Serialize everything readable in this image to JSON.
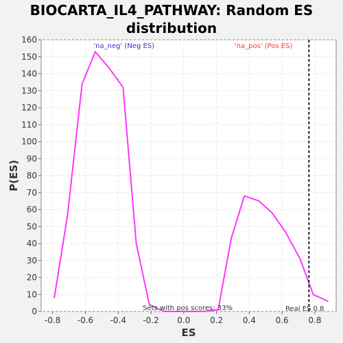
{
  "chart_data": {
    "type": "line",
    "title_line1": "BIOCARTA_IL4_PATHWAY: Random ES",
    "title_line2": "distribution",
    "xlabel": "ES",
    "ylabel": "P(ES)",
    "xlim": [
      -0.87,
      0.93
    ],
    "ylim": [
      0,
      160
    ],
    "xticks": [
      -0.8,
      -0.6,
      -0.4,
      -0.2,
      0.0,
      0.2,
      0.4,
      0.6,
      0.8
    ],
    "xtick_labels": [
      "-0.8",
      "-0.6",
      "-0.4",
      "-0.2",
      "0.0",
      "0.2",
      "0.4",
      "0.6",
      "0.8"
    ],
    "yticks": [
      0,
      10,
      20,
      30,
      40,
      50,
      60,
      70,
      80,
      90,
      100,
      110,
      120,
      130,
      140,
      150,
      160
    ],
    "grid": true,
    "series": [
      {
        "color": "#ff33ff",
        "x": [
          -0.79,
          -0.71,
          -0.62,
          -0.54,
          -0.46,
          -0.37,
          -0.29,
          -0.21,
          -0.12,
          -0.04,
          0.04,
          0.12,
          0.21,
          0.29,
          0.37,
          0.46,
          0.54,
          0.62,
          0.71,
          0.79,
          0.88
        ],
        "y": [
          8,
          56,
          134,
          153,
          144,
          132,
          40,
          4,
          0,
          0,
          0,
          0,
          1,
          43,
          68,
          65,
          58,
          47,
          31,
          10,
          6
        ]
      }
    ],
    "real_es": 0.8,
    "real_es_label": "Real ES 0.8",
    "neg_label": "'na_neg' (Neg ES)",
    "pos_label": "'na_pos' (Pos ES)",
    "sets_label": "Sets with pos scores: 33%",
    "colors": {
      "neg": "#3333cc",
      "pos": "#ff3333",
      "curve": "#ff33ff",
      "plot_bg": "#ffffff",
      "page_bg": "#f2f2f2"
    }
  }
}
